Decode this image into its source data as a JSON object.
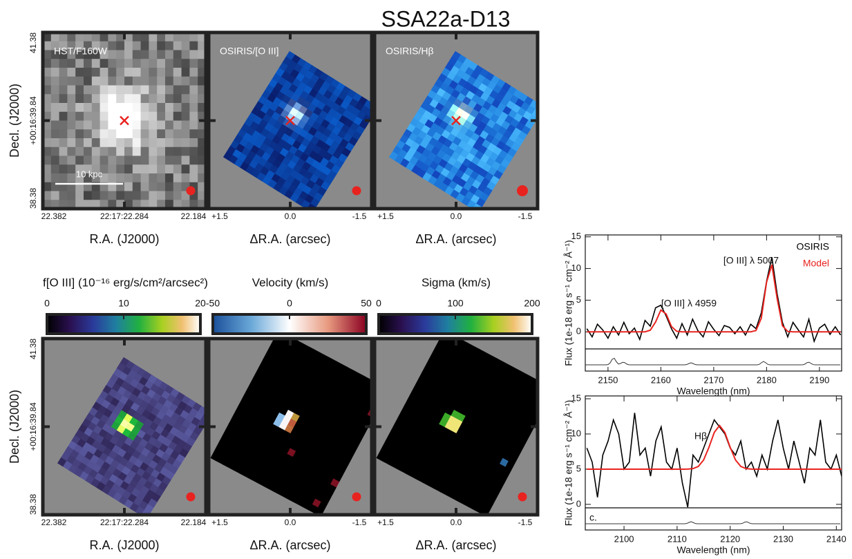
{
  "title": "SSA22a-D13",
  "image_rows": [
    {
      "y_label": "Decl. (J2000)",
      "y_ticks": [
        "41.38",
        "+00:16:39.84",
        "38.38"
      ],
      "panels": [
        {
          "label": "HST/F160W",
          "scale_bar": "10 kpc",
          "x_ticks": [
            "22.382",
            "22:17:22.284",
            "22.184"
          ],
          "x_label": "R.A. (J2000)"
        },
        {
          "label": "OSIRIS/[O III]",
          "x_ticks": [
            "+1.5",
            "0.0",
            "-1.5"
          ],
          "x_label": "ΔR.A. (arcsec)"
        },
        {
          "label": "OSIRIS/Hβ",
          "x_ticks": [
            "+1.5",
            "0.0",
            "-1.5"
          ],
          "x_label": "ΔR.A. (arcsec)"
        }
      ]
    },
    {
      "y_label": "Decl. (J2000)",
      "y_ticks": [
        "41.38",
        "+00:16:39.84",
        "38.38"
      ],
      "panels": [
        {
          "colorbar": {
            "label": "f[O III] (10⁻¹⁶ erg/s/cm²/arcsec²)",
            "range": [
              0,
              20
            ],
            "ticks": [
              0,
              10,
              20
            ]
          },
          "x_ticks": [
            "22.382",
            "22:17:22.284",
            "22.184"
          ],
          "x_label": "R.A. (J2000)"
        },
        {
          "colorbar": {
            "label": "Velocity (km/s)",
            "range": [
              -50,
              50
            ],
            "ticks": [
              -50,
              0,
              50
            ]
          },
          "x_ticks": [
            "+1.5",
            "0.0",
            "-1.5"
          ],
          "x_label": "ΔR.A. (arcsec)"
        },
        {
          "colorbar": {
            "label": "Sigma (km/s)",
            "range": [
              0,
              200
            ],
            "ticks": [
              0,
              100,
              200
            ]
          },
          "x_ticks": [
            "+1.5",
            "0.0",
            "-1.5"
          ],
          "x_label": "ΔR.A. (arcsec)"
        }
      ]
    }
  ],
  "chart_data": [
    {
      "type": "line",
      "x": [
        2146,
        2147,
        2148,
        2149,
        2150,
        2151,
        2152,
        2153,
        2154,
        2155,
        2156,
        2157,
        2158,
        2159,
        2160,
        2161,
        2162,
        2163,
        2164,
        2165,
        2166,
        2167,
        2168,
        2169,
        2170,
        2171,
        2172,
        2173,
        2174,
        2175,
        2176,
        2177,
        2178,
        2179,
        2180,
        2181,
        2182,
        2183,
        2184,
        2185,
        2186,
        2187,
        2188,
        2189,
        2190,
        2191,
        2192,
        2193,
        2194
      ],
      "series": [
        {
          "name": "OSIRIS",
          "color": "#000000",
          "values": [
            0.5,
            -0.8,
            1.2,
            0.3,
            -1,
            0.8,
            -0.5,
            1.5,
            -0.3,
            0.6,
            -1.2,
            1.8,
            0.9,
            3.8,
            4.2,
            2.5,
            0.5,
            -1,
            1.3,
            -0.5,
            2,
            0.2,
            -0.8,
            1.6,
            0.4,
            -0.6,
            1,
            0.7,
            -0.3,
            0.8,
            -0.5,
            1.2,
            0.5,
            3,
            8,
            11.8,
            6,
            1.5,
            -0.8,
            1.5,
            0.3,
            -0.8,
            2,
            -1.5,
            0.6,
            1.2,
            -0.4,
            0.8,
            -0.5
          ]
        },
        {
          "name": "Model",
          "color": "#e8231f",
          "values": [
            0,
            0,
            0,
            0,
            0,
            0,
            0,
            0,
            0,
            0,
            0,
            0,
            0.26,
            1.55,
            3.44,
            2.82,
            0.85,
            0.09,
            0,
            0,
            0,
            0,
            0,
            0,
            0,
            0,
            0,
            0,
            0,
            0,
            0,
            0,
            0.21,
            2.14,
            7.84,
            10.59,
            5.26,
            0.96,
            0.06,
            0,
            0,
            0,
            0,
            0,
            0,
            0,
            0,
            0,
            0
          ]
        }
      ],
      "legend": "upper right",
      "xlim": [
        2145.7,
        2194.2
      ],
      "xticks": [
        2150,
        2160,
        2170,
        2180,
        2190
      ],
      "ylim": [
        -2.7,
        15.3
      ],
      "yticks": [
        0,
        5,
        10,
        15
      ],
      "x_label": "Wavelength (nm)",
      "y_label": "Flux (1e-18 erg s⁻¹ cm⁻² Å⁻¹)",
      "annotations": [
        "[O III] λ 5007",
        "[O III] λ 4959"
      ]
    },
    {
      "type": "line",
      "x": [
        2093,
        2094,
        2095,
        2096,
        2097,
        2098,
        2099,
        2100,
        2101,
        2102,
        2103,
        2104,
        2105,
        2106,
        2107,
        2108,
        2109,
        2110,
        2111,
        2112,
        2113,
        2114,
        2115,
        2116,
        2117,
        2118,
        2119,
        2120,
        2121,
        2122,
        2123,
        2124,
        2125,
        2126,
        2127,
        2128,
        2129,
        2130,
        2131,
        2132,
        2133,
        2134,
        2135,
        2136,
        2137,
        2138,
        2139,
        2140,
        2141
      ],
      "series": [
        {
          "color": "#000000",
          "values": [
            8,
            6,
            1,
            7,
            9,
            12,
            10,
            5,
            6,
            13,
            7,
            8,
            4,
            9,
            11,
            6,
            5,
            8,
            3,
            -0.4,
            7,
            6,
            8,
            10,
            12,
            11,
            10,
            8,
            7,
            9,
            5,
            6,
            4,
            7,
            5,
            9,
            12,
            8,
            5,
            9,
            6,
            3,
            8,
            7,
            12,
            6,
            5,
            7,
            4
          ]
        },
        {
          "color": "#e8231f",
          "values": [
            5,
            5,
            5,
            5,
            5,
            5,
            5,
            5,
            5,
            5,
            5,
            5,
            5,
            5,
            5,
            5,
            5,
            5,
            5,
            5.01,
            5.08,
            5.39,
            6.31,
            8.1,
            10.21,
            11.2,
            10.21,
            8.1,
            6.31,
            5.39,
            5.08,
            5.01,
            5,
            5,
            5,
            5,
            5,
            5,
            5,
            5,
            5,
            5,
            5,
            5,
            5,
            5,
            5,
            5,
            5
          ]
        }
      ],
      "xlim": [
        2092.7,
        2141.0
      ],
      "xticks": [
        2100,
        2110,
        2120,
        2130,
        2140
      ],
      "ylim": [
        -0.5,
        15.4
      ],
      "yticks": [
        0,
        5,
        10,
        15
      ],
      "x_label": "Wavelength (nm)",
      "y_label": "Flux (1e-18 erg s⁻¹ cm⁻² Å⁻¹)",
      "annotations": [
        "Hβ",
        "c."
      ]
    }
  ]
}
